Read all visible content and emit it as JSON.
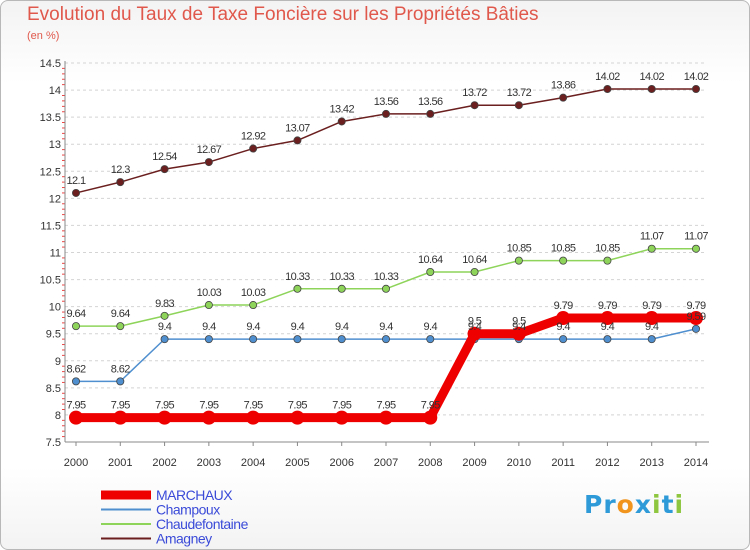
{
  "chart_data": {
    "type": "line",
    "title": "Evolution du Taux de Taxe Foncière sur les Propriétés Bâties",
    "subtitle": "(en %)",
    "x": [
      "2000",
      "2001",
      "2002",
      "2003",
      "2004",
      "2005",
      "2006",
      "2007",
      "2008",
      "2009",
      "2010",
      "2011",
      "2012",
      "2013",
      "2014"
    ],
    "ylim": [
      7.5,
      14.5
    ],
    "yticks": [
      "7.5",
      "8",
      "8.5",
      "9",
      "9.5",
      "10",
      "10.5",
      "11",
      "11.5",
      "12",
      "12.5",
      "13",
      "13.5",
      "14",
      "14.5"
    ],
    "grid": "horizontal dashed",
    "legend": "bottom-left",
    "series": [
      {
        "name": "MARCHAUX",
        "color": "#ee0000",
        "values": [
          7.95,
          7.95,
          7.95,
          7.95,
          7.95,
          7.95,
          7.95,
          7.95,
          7.95,
          9.5,
          9.5,
          9.79,
          9.79,
          9.79,
          9.79
        ],
        "labels": [
          "7.95",
          "7.95",
          "7.95",
          "7.95",
          "7.95",
          "7.95",
          "7.95",
          "7.95",
          "7.95",
          "9.5",
          "9.5",
          "9.79",
          "9.79",
          "9.79",
          "9.79"
        ]
      },
      {
        "name": "Champoux",
        "color": "#4f8fcf",
        "values": [
          8.62,
          8.62,
          9.4,
          9.4,
          9.4,
          9.4,
          9.4,
          9.4,
          9.4,
          9.4,
          9.4,
          9.4,
          9.4,
          9.4,
          9.59
        ],
        "labels": [
          "8.62",
          "8.62",
          "9.4",
          "9.4",
          "9.4",
          "9.4",
          "9.4",
          "9.4",
          "9.4",
          "9.4",
          "9.4",
          "9.4",
          "9.4",
          "9.4",
          "9.59"
        ]
      },
      {
        "name": "Chaudefontaine",
        "color": "#8ed45a",
        "values": [
          9.64,
          9.64,
          9.83,
          10.03,
          10.03,
          10.33,
          10.33,
          10.33,
          10.64,
          10.64,
          10.85,
          10.85,
          10.85,
          11.07,
          11.07
        ],
        "labels": [
          "9.64",
          "9.64",
          "9.83",
          "10.03",
          "10.03",
          "10.33",
          "10.33",
          "10.33",
          "10.64",
          "10.64",
          "10.85",
          "10.85",
          "10.85",
          "11.07",
          "11.07"
        ]
      },
      {
        "name": "Amagney",
        "color": "#6b1f1f",
        "values": [
          12.1,
          12.3,
          12.54,
          12.67,
          12.92,
          13.07,
          13.42,
          13.56,
          13.56,
          13.72,
          13.72,
          13.86,
          14.02,
          14.02,
          14.02
        ],
        "labels": [
          "12.1",
          "12.3",
          "12.54",
          "12.67",
          "12.92",
          "13.07",
          "13.42",
          "13.56",
          "13.56",
          "13.72",
          "13.72",
          "13.86",
          "14.02",
          "14.02",
          "14.02"
        ]
      }
    ]
  },
  "logo": {
    "text": "Proxiti",
    "letters": [
      "P",
      "r",
      "o",
      "x",
      "i",
      "t",
      "i"
    ],
    "colors": [
      "#2e9ad8",
      "#2e9ad8",
      "#f0941e",
      "#2e9ad8",
      "#8ec63f",
      "#2e9ad8",
      "#8ec63f"
    ]
  }
}
